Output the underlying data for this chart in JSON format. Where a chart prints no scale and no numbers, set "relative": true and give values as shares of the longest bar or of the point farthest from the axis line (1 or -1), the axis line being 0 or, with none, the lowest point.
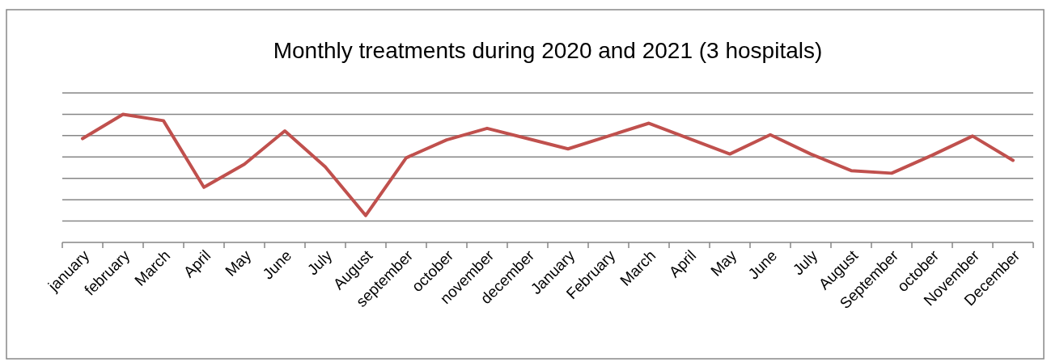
{
  "chart_data": {
    "type": "line",
    "title": "Monthly treatments during 2020 and 2021 (3 hospitals)",
    "relative": true,
    "grid": true,
    "categories": [
      "january",
      "february",
      "March",
      "April",
      "May",
      "June",
      "July",
      "August",
      "september",
      "october",
      "november",
      "december",
      "January",
      "February",
      "March",
      "April",
      "May",
      "June",
      "July",
      "August",
      "September",
      "october",
      "November",
      "December"
    ],
    "series": [
      {
        "color": "#c0504d",
        "values": [
          0.81,
          1,
          0.95,
          0.43,
          0.61,
          0.87,
          0.59,
          0.21,
          0.66,
          0.8,
          0.89,
          0.81,
          0.73,
          0.83,
          0.93,
          0.81,
          0.69,
          0.84,
          0.69,
          0.56,
          0.54,
          0.68,
          0.83,
          0.64
        ]
      }
    ],
    "marker": "none",
    "line_style": "solid"
  }
}
